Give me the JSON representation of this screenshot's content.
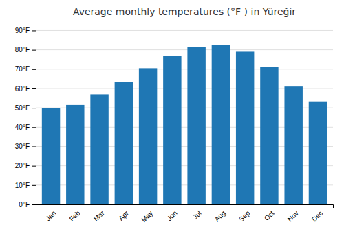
{
  "chart_data": {
    "type": "bar",
    "title": "Average monthly temperatures (°F ) in Yüreğir",
    "categories": [
      "Jan",
      "Feb",
      "Mar",
      "Apr",
      "May",
      "Jun",
      "Jul",
      "Aug",
      "Sep",
      "Oct",
      "Nov",
      "Dec"
    ],
    "values": [
      50,
      51.5,
      57,
      63.5,
      70.5,
      77,
      81.5,
      82.5,
      79,
      71,
      61,
      53
    ],
    "ylim": [
      0,
      93
    ],
    "yticks": [
      {
        "value": 0,
        "label": "0°F"
      },
      {
        "value": 10,
        "label": "10°F"
      },
      {
        "value": 20,
        "label": "20°F"
      },
      {
        "value": 30,
        "label": "30°F"
      },
      {
        "value": 40,
        "label": "40°F"
      },
      {
        "value": 50,
        "label": "50°F"
      },
      {
        "value": 60,
        "label": "60°F"
      },
      {
        "value": 70,
        "label": "70°F"
      },
      {
        "value": 80,
        "label": "80°F"
      },
      {
        "value": 90,
        "label": "90°F"
      }
    ],
    "grid": true
  }
}
